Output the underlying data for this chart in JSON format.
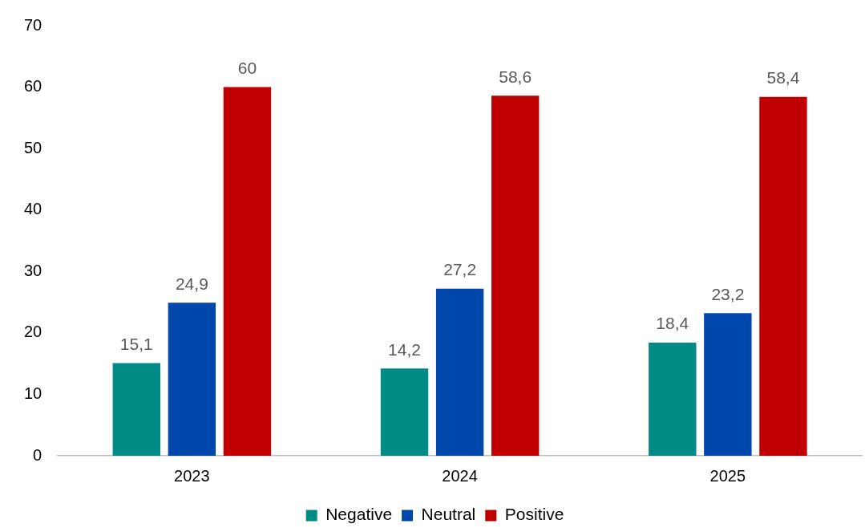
{
  "chart_data": {
    "type": "bar",
    "categories": [
      "2023",
      "2024",
      "2025"
    ],
    "series": [
      {
        "name": "Negative",
        "color": "#008b87",
        "values": [
          15.1,
          14.2,
          18.4
        ],
        "value_labels": [
          "15,1",
          "14,2",
          "18,4"
        ]
      },
      {
        "name": "Neutral",
        "color": "#0047ab",
        "values": [
          24.9,
          27.2,
          23.2
        ],
        "value_labels": [
          "24,9",
          "27,2",
          "23,2"
        ]
      },
      {
        "name": "Positive",
        "color": "#c00000",
        "values": [
          60,
          58.6,
          58.4
        ],
        "value_labels": [
          "60",
          "58,6",
          "58,4"
        ]
      }
    ],
    "ylim": [
      0,
      70
    ],
    "yticks": [
      0,
      10,
      20,
      30,
      40,
      50,
      60,
      70
    ],
    "grid": false,
    "legend": "bottom"
  }
}
